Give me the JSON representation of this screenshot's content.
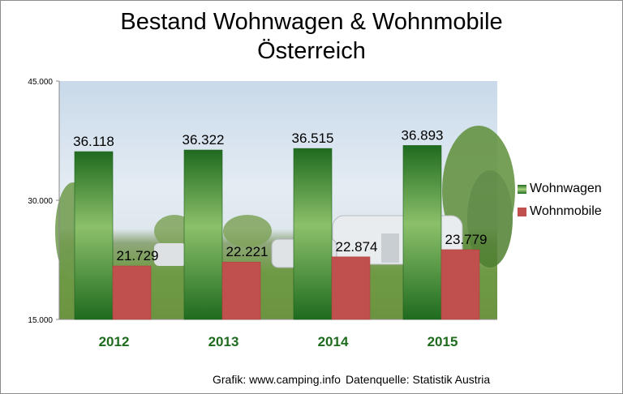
{
  "chart_data": {
    "type": "bar",
    "title_line1": "Bestand Wohnwagen & Wohnmobile",
    "title_line2": "Österreich",
    "categories": [
      "2012",
      "2013",
      "2014",
      "2015"
    ],
    "series": [
      {
        "name": "Wohnwagen",
        "values": [
          36118,
          36322,
          36515,
          36893
        ],
        "labels": [
          "36.118",
          "36.322",
          "36.515",
          "36.893"
        ],
        "color": "#2e8b2e"
      },
      {
        "name": "Wohnmobile",
        "values": [
          21729,
          22221,
          22874,
          23779
        ],
        "labels": [
          "21.729",
          "22.221",
          "22.874",
          "23.779"
        ],
        "color": "#c0504d"
      }
    ],
    "ylim": [
      15000,
      45000
    ],
    "yticks": [
      15000,
      30000,
      45000
    ],
    "ytick_labels": [
      "15.000",
      "30.000",
      "45.000"
    ],
    "legend_position": "right",
    "category_label_color": "#1e6b1e"
  },
  "footer": {
    "source": "Grafik: www.camping.info",
    "data_source": "Datenquelle: Statistik Austria"
  }
}
